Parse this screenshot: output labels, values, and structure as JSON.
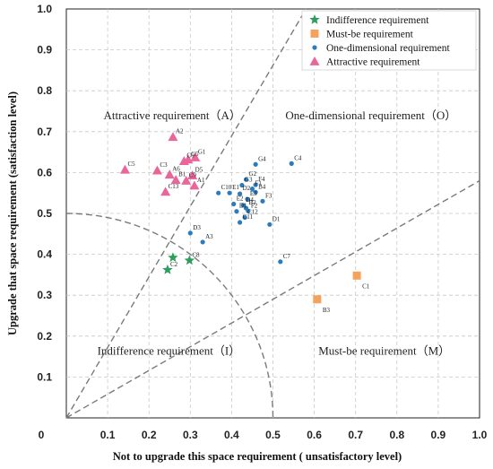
{
  "chart_data": {
    "type": "scatter",
    "xlabel": "Not to upgrade this space requirement ( unsatisfactory level)",
    "ylabel": "Upgrade that space requirement (satisfaction level)",
    "xlim": [
      0,
      1.0
    ],
    "ylim": [
      0,
      1.0
    ],
    "xticks": [
      "0.1",
      "0.2",
      "0.3",
      "0.4",
      "0.5",
      "0.6",
      "0.7",
      "0.8",
      "0.9",
      "1.0"
    ],
    "yticks": [
      "0.1",
      "0.2",
      "0.3",
      "0.4",
      "0.5",
      "0.6",
      "0.7",
      "0.8",
      "0.9",
      "1.0"
    ],
    "origin_label": "0",
    "grid": true,
    "legend_position": "top-right",
    "region_labels": {
      "attractive": "Attractive requirement（A）",
      "one_dimensional": "One-dimensional requirement（O）",
      "indifference": "Indifference requirement（I）",
      "must_be": "Must-be requirement（M）"
    },
    "series": [
      {
        "name": "Indifference requirement",
        "marker": "star",
        "color": "#2e9e5e",
        "points": [
          {
            "label": "C2",
            "x": 0.245,
            "y": 0.362
          },
          {
            "label": "C8",
            "x": 0.298,
            "y": 0.385
          },
          {
            "label": "",
            "x": 0.258,
            "y": 0.392
          }
        ]
      },
      {
        "name": "Must-be requirement",
        "marker": "square",
        "color": "#f5a25d",
        "points": [
          {
            "label": "C1",
            "x": 0.703,
            "y": 0.348
          },
          {
            "label": "B3",
            "x": 0.607,
            "y": 0.29
          }
        ]
      },
      {
        "name": "One-dimensional requirement",
        "marker": "circle",
        "color": "#2b7bbd",
        "points": [
          {
            "label": "C4",
            "x": 0.545,
            "y": 0.622
          },
          {
            "label": "G4",
            "x": 0.458,
            "y": 0.62
          },
          {
            "label": "G2",
            "x": 0.435,
            "y": 0.583
          },
          {
            "label": "G3",
            "x": 0.425,
            "y": 0.569
          },
          {
            "label": "F4",
            "x": 0.458,
            "y": 0.57
          },
          {
            "label": "F1",
            "x": 0.45,
            "y": 0.56
          },
          {
            "label": "B4",
            "x": 0.458,
            "y": 0.552
          },
          {
            "label": "C10",
            "x": 0.368,
            "y": 0.55
          },
          {
            "label": "E1",
            "x": 0.395,
            "y": 0.55
          },
          {
            "label": "D2",
            "x": 0.42,
            "y": 0.548
          },
          {
            "label": "E3",
            "x": 0.438,
            "y": 0.535
          },
          {
            "label": "E2",
            "x": 0.405,
            "y": 0.523
          },
          {
            "label": "D4",
            "x": 0.428,
            "y": 0.52
          },
          {
            "label": "F3",
            "x": 0.475,
            "y": 0.53
          },
          {
            "label": "B2",
            "x": 0.435,
            "y": 0.513
          },
          {
            "label": "F2",
            "x": 0.44,
            "y": 0.506
          },
          {
            "label": "D1",
            "x": 0.412,
            "y": 0.505
          },
          {
            "label": "C12",
            "x": 0.432,
            "y": 0.49
          },
          {
            "label": "C11",
            "x": 0.42,
            "y": 0.478
          },
          {
            "label": "D1",
            "x": 0.492,
            "y": 0.473
          },
          {
            "label": "D3",
            "x": 0.3,
            "y": 0.452
          },
          {
            "label": "A3",
            "x": 0.33,
            "y": 0.43
          },
          {
            "label": "C7",
            "x": 0.518,
            "y": 0.382
          }
        ]
      },
      {
        "name": "Attractive requirement",
        "marker": "triangle",
        "color": "#e8669a",
        "points": [
          {
            "label": "A2",
            "x": 0.258,
            "y": 0.687
          },
          {
            "label": "G1",
            "x": 0.312,
            "y": 0.637
          },
          {
            "label": "G5",
            "x": 0.295,
            "y": 0.632
          },
          {
            "label": "C6",
            "x": 0.285,
            "y": 0.628
          },
          {
            "label": "C5",
            "x": 0.142,
            "y": 0.607
          },
          {
            "label": "C3",
            "x": 0.22,
            "y": 0.605
          },
          {
            "label": "A6",
            "x": 0.25,
            "y": 0.595
          },
          {
            "label": "D5",
            "x": 0.305,
            "y": 0.593
          },
          {
            "label": "B1",
            "x": 0.265,
            "y": 0.582
          },
          {
            "label": "C9",
            "x": 0.29,
            "y": 0.58
          },
          {
            "label": "A1",
            "x": 0.31,
            "y": 0.568
          },
          {
            "label": "C13",
            "x": 0.24,
            "y": 0.553
          }
        ]
      }
    ]
  }
}
